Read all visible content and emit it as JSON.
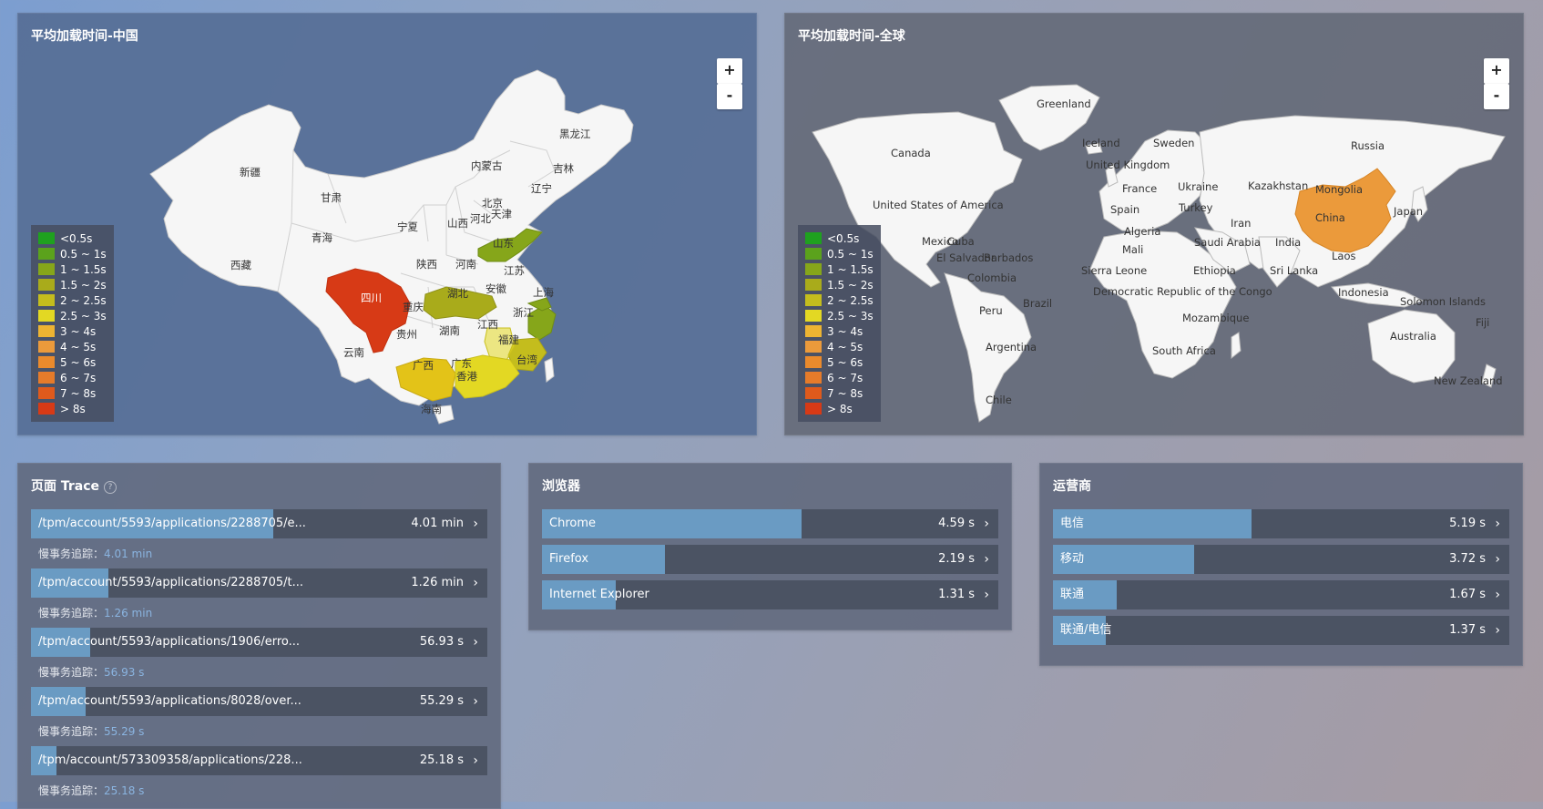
{
  "china_panel": {
    "title": "平均加载时间-中国",
    "zoom_in": "+",
    "zoom_out": "-",
    "provinces": {
      "xinjiang": "新疆",
      "xizang": "西藏",
      "qinghai": "青海",
      "gansu": "甘肃",
      "neimenggu": "内蒙古",
      "heilongjiang": "黑龙江",
      "jilin": "吉林",
      "liaoning": "辽宁",
      "beijing": "北京",
      "tianjin": "天津",
      "hebei": "河北",
      "shanxi": "山西",
      "ningxia": "宁夏",
      "shandong": "山东",
      "shaanxi": "陕西",
      "henan": "河南",
      "jiangsu": "江苏",
      "shanghai": "上海",
      "anhui": "安徽",
      "hubei": "湖北",
      "sichuan": "四川",
      "chongqing": "重庆",
      "zhejiang": "浙江",
      "guizhou": "贵州",
      "hunan": "湖南",
      "jiangxi": "江西",
      "fujian": "福建",
      "yunnan": "云南",
      "guangxi": "广西",
      "guangdong": "广东",
      "xianggang": "香港",
      "taiwan": "台湾",
      "hainan": "海南"
    }
  },
  "world_panel": {
    "title": "平均加载时间-全球",
    "zoom_in": "+",
    "zoom_out": "-",
    "countries": {
      "greenland": "Greenland",
      "canada": "Canada",
      "usa": "United States of America",
      "mexico": "Mexico",
      "cuba": "Cuba",
      "elsalvador": "El Salvador",
      "barbados": "Barbados",
      "colombia": "Colombia",
      "peru": "Peru",
      "brazil": "Brazil",
      "argentina": "Argentina",
      "chile": "Chile",
      "iceland": "Iceland",
      "sweden": "Sweden",
      "uk": "United Kingdom",
      "france": "France",
      "spain": "Spain",
      "ukraine": "Ukraine",
      "turkey": "Turkey",
      "kazakhstan": "Kazakhstan",
      "russia": "Russia",
      "mongolia": "Mongolia",
      "china": "China",
      "japan": "Japan",
      "iran": "Iran",
      "india": "India",
      "saudi": "Saudi Arabia",
      "algeria": "Algeria",
      "mali": "Mali",
      "sierraleone": "Sierra Leone",
      "ethiopia": "Ethiopia",
      "srilanka": "Sri Lanka",
      "laos": "Laos",
      "drc": "Democratic Republic of the Congo",
      "indonesia": "Indonesia",
      "solomon": "Solomon Islands",
      "fiji": "Fiji",
      "mozambique": "Mozambique",
      "southafrica": "South Africa",
      "australia": "Australia",
      "newzealand": "New Zealand"
    }
  },
  "legend": [
    {
      "label": "<0.5s",
      "color": "#1fa11f"
    },
    {
      "label": "0.5 ~ 1s",
      "color": "#5ba21c"
    },
    {
      "label": "1 ~ 1.5s",
      "color": "#86a61a"
    },
    {
      "label": "1.5 ~ 2s",
      "color": "#a9ab1b"
    },
    {
      "label": "2 ~ 2.5s",
      "color": "#c4bd1d"
    },
    {
      "label": "2.5 ~ 3s",
      "color": "#e3d823"
    },
    {
      "label": "3 ~ 4s",
      "color": "#edb432"
    },
    {
      "label": "4 ~ 5s",
      "color": "#eb9a3b"
    },
    {
      "label": "5 ~ 6s",
      "color": "#ea8a2c"
    },
    {
      "label": "6 ~ 7s",
      "color": "#e67b2a"
    },
    {
      "label": "7 ~ 8s",
      "color": "#df5a1c"
    },
    {
      "label": "> 8s",
      "color": "#d73a16"
    }
  ],
  "trace_panel": {
    "title": "页面 Trace",
    "help": "?",
    "sub_prefix": "慢事务追踪：",
    "items": [
      {
        "path": "/tpm/account/5593/applications/2288705/e...",
        "value": "4.01 min",
        "fill": 0.53
      },
      {
        "path": "/tpm/account/5593/applications/2288705/t...",
        "value": "1.26 min",
        "fill": 0.17
      },
      {
        "path": "/tpm/account/5593/applications/1906/erro...",
        "value": "56.93 s",
        "fill": 0.13
      },
      {
        "path": "/tpm/account/5593/applications/8028/over...",
        "value": "55.29 s",
        "fill": 0.12
      },
      {
        "path": "/tpm/account/573309358/applications/228...",
        "value": "25.18 s",
        "fill": 0.055
      }
    ]
  },
  "browser_panel": {
    "title": "浏览器",
    "items": [
      {
        "label": "Chrome",
        "value": "4.59 s",
        "fill": 0.568
      },
      {
        "label": "Firefox",
        "value": "2.19 s",
        "fill": 0.27
      },
      {
        "label": "Internet Explorer",
        "value": "1.31 s",
        "fill": 0.162
      }
    ]
  },
  "carrier_panel": {
    "title": "运营商",
    "items": [
      {
        "label": "电信",
        "value": "5.19 s",
        "fill": 0.435
      },
      {
        "label": "移动",
        "value": "3.72 s",
        "fill": 0.31
      },
      {
        "label": "联通",
        "value": "1.67 s",
        "fill": 0.14
      },
      {
        "label": "联通/电信",
        "value": "1.37 s",
        "fill": 0.115
      }
    ]
  },
  "chevron": "›"
}
